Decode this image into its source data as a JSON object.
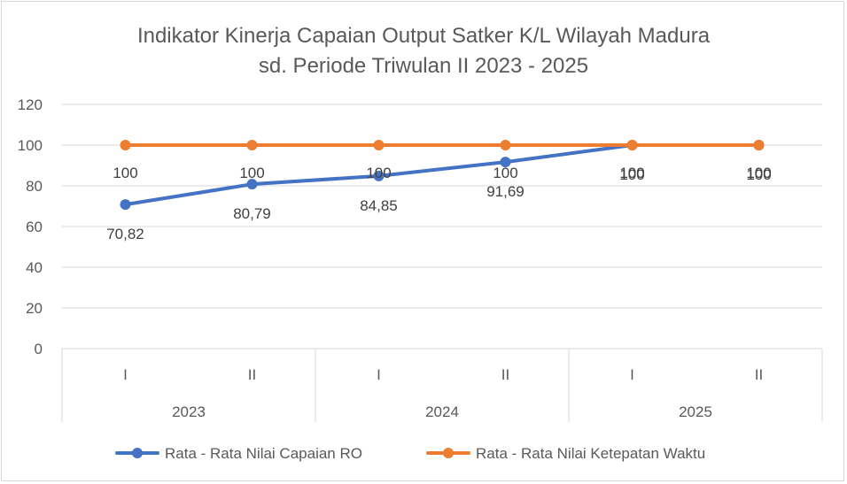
{
  "chart_data": {
    "type": "line",
    "title": [
      "Indikator Kinerja Capaian Output Satker K/L Wilayah Madura",
      "sd. Periode Triwulan II 2023 - 2025"
    ],
    "ylim": [
      0,
      120
    ],
    "yticks": [
      0,
      20,
      40,
      60,
      80,
      100,
      120
    ],
    "grid": true,
    "categories": [
      {
        "period": "I",
        "year": "2023"
      },
      {
        "period": "II",
        "year": "2023"
      },
      {
        "period": "I",
        "year": "2024"
      },
      {
        "period": "II",
        "year": "2024"
      },
      {
        "period": "I",
        "year": "2025"
      },
      {
        "period": "II",
        "year": "2025"
      }
    ],
    "years": [
      "2023",
      "2024",
      "2025"
    ],
    "series": [
      {
        "name": "Rata - Rata Nilai Capaian RO",
        "color": "#4472c4",
        "values": [
          70.82,
          80.79,
          84.85,
          91.69,
          100,
          100
        ],
        "labels": [
          "70,82",
          "80,79",
          "84,85",
          "91,69",
          "100",
          "100"
        ]
      },
      {
        "name": "Rata - Rata Nilai Ketepatan Waktu",
        "color": "#ed7d31",
        "values": [
          100,
          100,
          100,
          100,
          100,
          100
        ],
        "labels": [
          "100",
          "100",
          "100",
          "100",
          "100",
          "100"
        ]
      }
    ],
    "legend_position": "bottom"
  }
}
